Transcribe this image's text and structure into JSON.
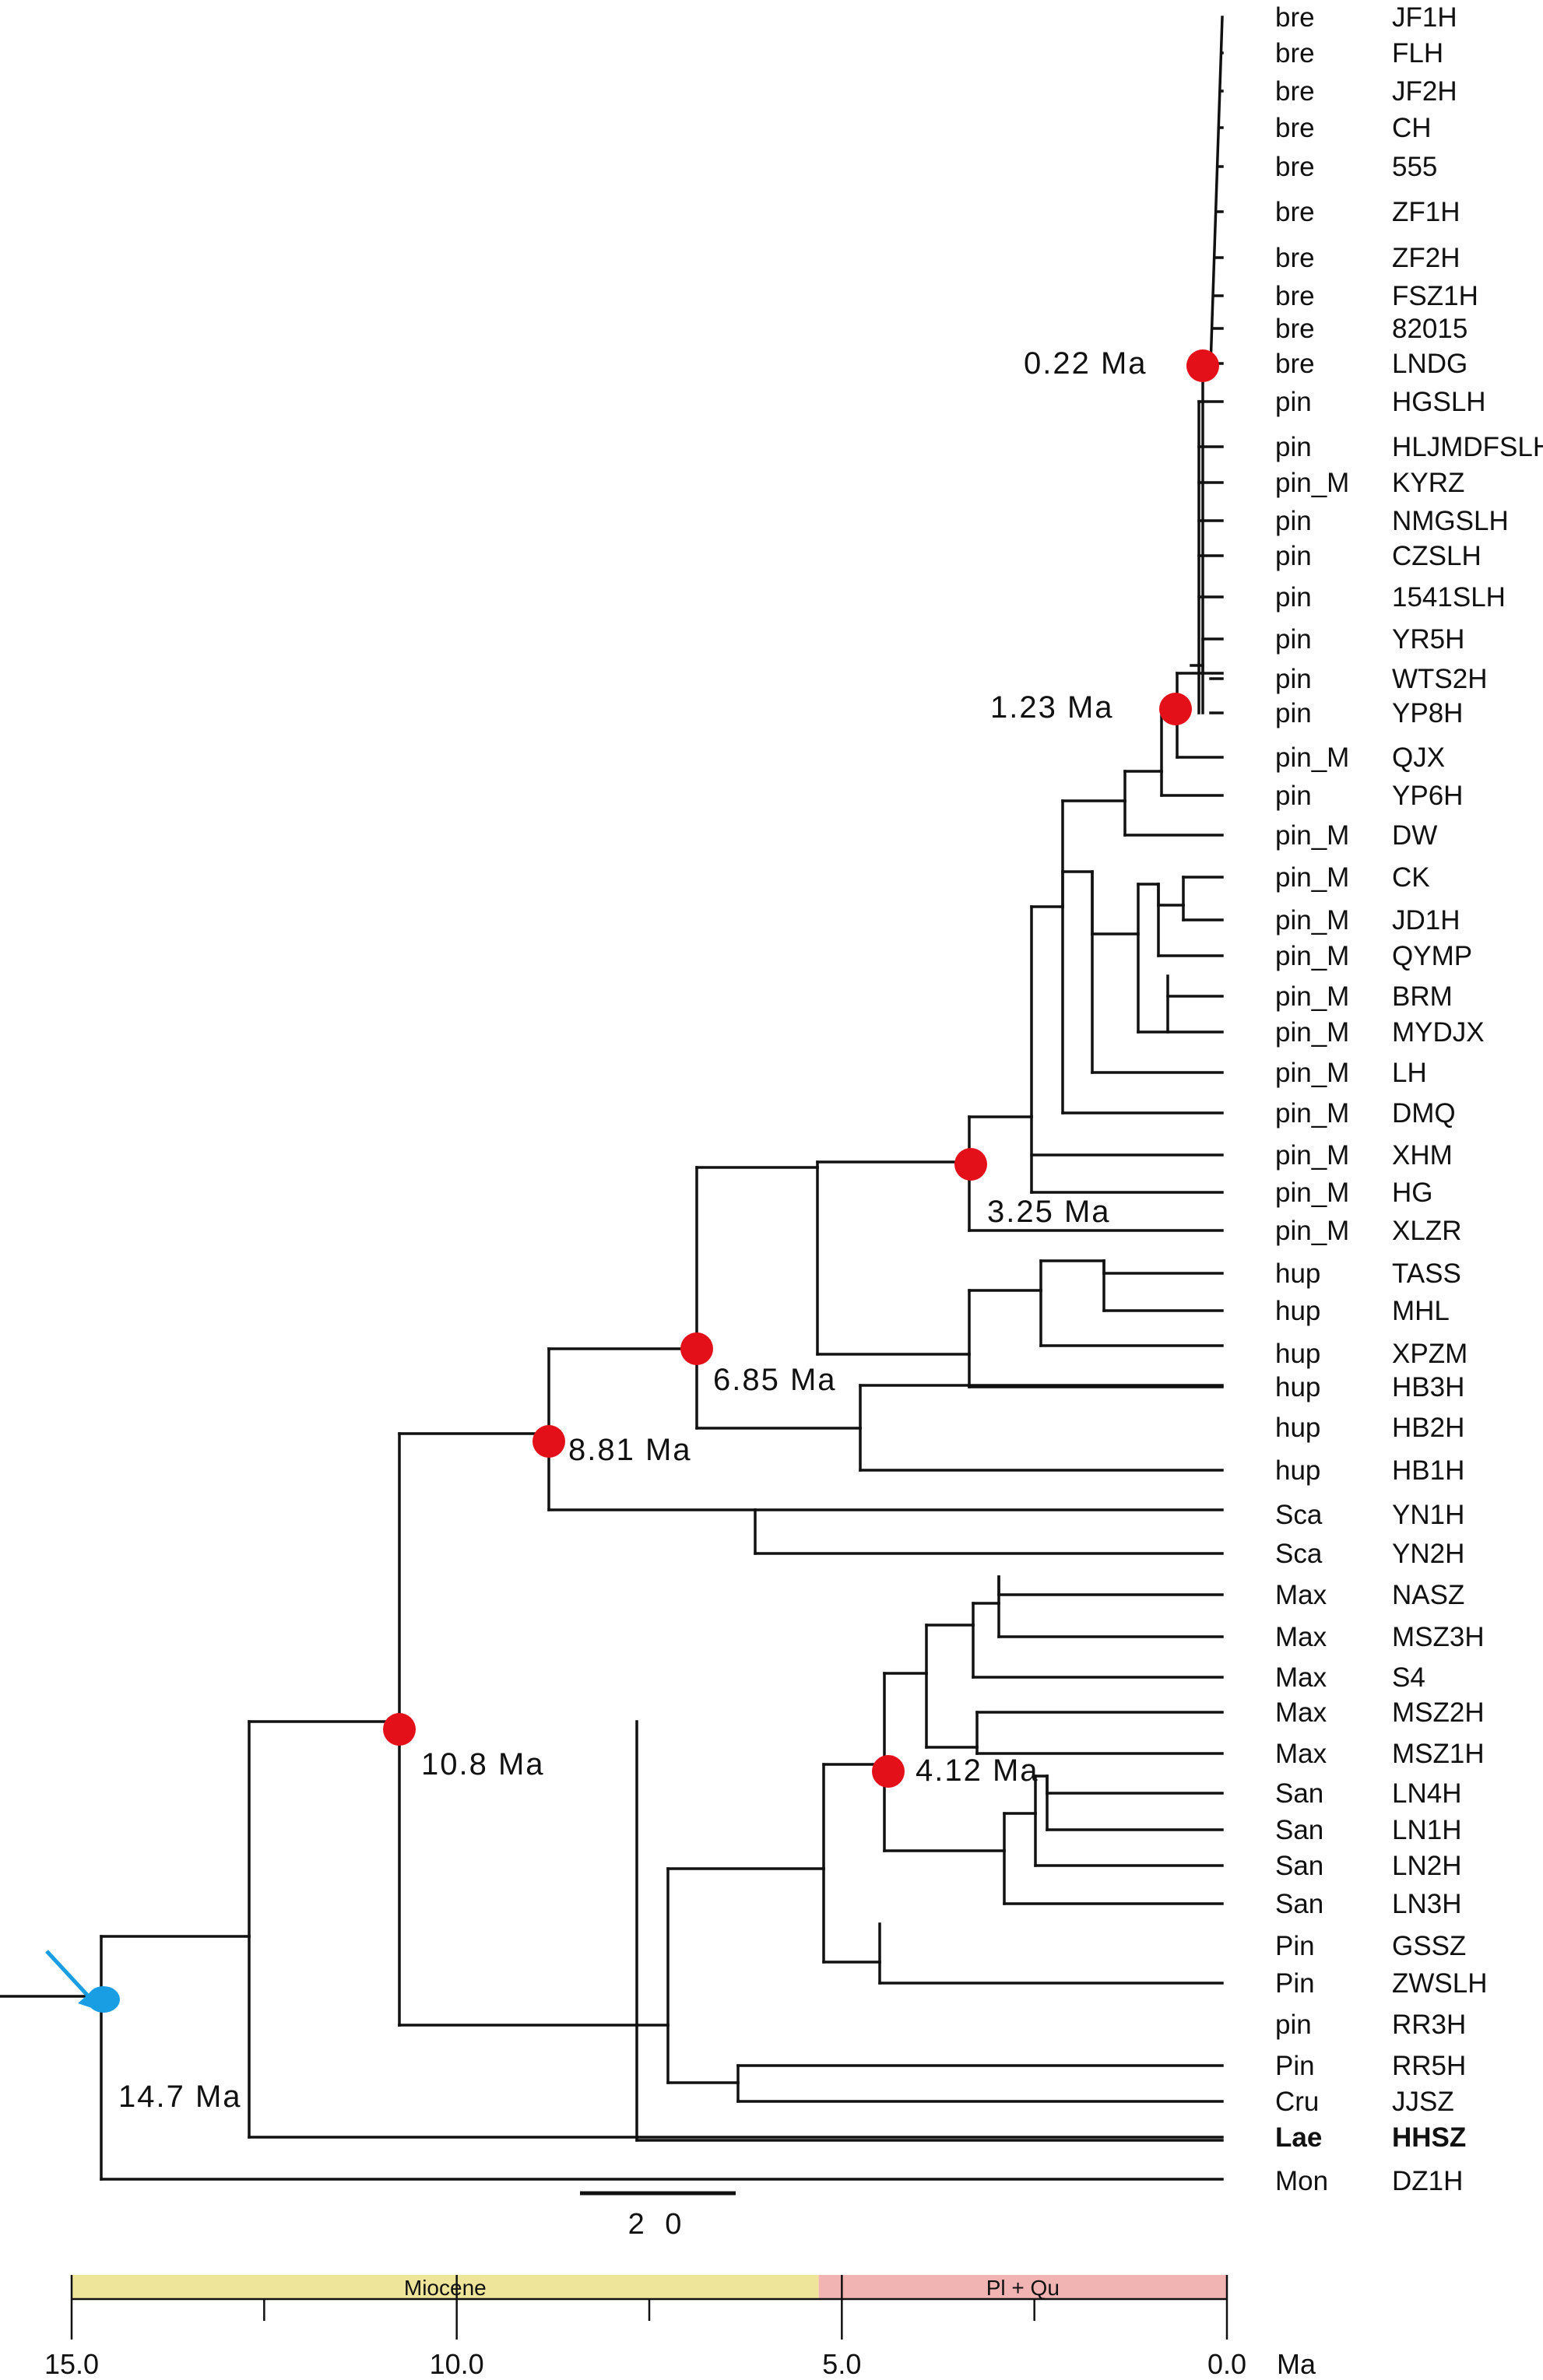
{
  "taxa": [
    {
      "group": "bre",
      "name": "JF1H"
    },
    {
      "group": "bre",
      "name": "FLH"
    },
    {
      "group": "bre",
      "name": "JF2H"
    },
    {
      "group": "bre",
      "name": "CH"
    },
    {
      "group": "bre",
      "name": "555"
    },
    {
      "group": "bre",
      "name": "ZF1H"
    },
    {
      "group": "bre",
      "name": "ZF2H"
    },
    {
      "group": "bre",
      "name": "FSZ1H"
    },
    {
      "group": "bre",
      "name": "82015"
    },
    {
      "group": "bre",
      "name": "LNDG"
    },
    {
      "group": "pin",
      "name": "HGSLH"
    },
    {
      "group": "pin",
      "name": "HLJMDFSLH"
    },
    {
      "group": "pin_M",
      "name": "KYRZ"
    },
    {
      "group": "pin",
      "name": "NMGSLH"
    },
    {
      "group": "pin",
      "name": "CZSLH"
    },
    {
      "group": "pin",
      "name": "1541SLH",
      "color": "#1a2fd0"
    },
    {
      "group": "pin",
      "name": "YR5H"
    },
    {
      "group": "pin",
      "name": "WTS2H"
    },
    {
      "group": "pin",
      "name": "YP8H"
    },
    {
      "group": "pin_M",
      "name": "QJX"
    },
    {
      "group": "pin",
      "name": "YP6H"
    },
    {
      "group": "pin_M",
      "name": "DW"
    },
    {
      "group": "pin_M",
      "name": "CK"
    },
    {
      "group": "pin_M",
      "name": "JD1H"
    },
    {
      "group": "pin_M",
      "name": "QYMP"
    },
    {
      "group": "pin_M",
      "name": "BRM"
    },
    {
      "group": "pin_M",
      "name": "MYDJX"
    },
    {
      "group": "pin_M",
      "name": "LH"
    },
    {
      "group": "pin_M",
      "name": "DMQ"
    },
    {
      "group": "pin_M",
      "name": "XHM"
    },
    {
      "group": "pin_M",
      "name": "HG"
    },
    {
      "group": "pin_M",
      "name": "XLZR"
    },
    {
      "group": "hup",
      "name": "TASS"
    },
    {
      "group": "hup",
      "name": "MHL"
    },
    {
      "group": "hup",
      "name": "XPZM"
    },
    {
      "group": "hup",
      "name": "HB3H"
    },
    {
      "group": "hup",
      "name": "HB2H"
    },
    {
      "group": "hup",
      "name": "HB1H"
    },
    {
      "group": "Sca",
      "name": "YN1H"
    },
    {
      "group": "Sca",
      "name": "YN2H"
    },
    {
      "group": "Max",
      "name": "NASZ"
    },
    {
      "group": "Max",
      "name": "MSZ3H"
    },
    {
      "group": "Max",
      "name": "S4"
    },
    {
      "group": "Max",
      "name": "MSZ2H"
    },
    {
      "group": "Max",
      "name": "MSZ1H"
    },
    {
      "group": "San",
      "name": "LN4H"
    },
    {
      "group": "San",
      "name": "LN1H"
    },
    {
      "group": "San",
      "name": "LN2H"
    },
    {
      "group": "San",
      "name": "LN3H"
    },
    {
      "group": "Pin",
      "name": "GSSZ"
    },
    {
      "group": "Pin",
      "name": "ZWSLH"
    },
    {
      "group": "pin",
      "name": "RR3H"
    },
    {
      "group": "Pin",
      "name": "RR5H"
    },
    {
      "group": "Cru",
      "name": "JJSZ"
    },
    {
      "group": "Lae",
      "name": "HHSZ",
      "bold": true
    },
    {
      "group": "Mon",
      "name": "DZ1H",
      "color": "#1a2fd0"
    }
  ],
  "nodes": [
    {
      "label": "0.22 Ma",
      "age": 0.22,
      "color": "#e3101a"
    },
    {
      "label": "1.23 Ma",
      "age": 1.23,
      "color": "#e3101a"
    },
    {
      "label": "3.25 Ma",
      "age": 3.25,
      "color": "#e3101a"
    },
    {
      "label": "6.85 Ma",
      "age": 6.85,
      "color": "#e3101a"
    },
    {
      "label": "8.81 Ma",
      "age": 8.81,
      "color": "#e3101a"
    },
    {
      "label": "10.8 Ma",
      "age": 10.8,
      "color": "#e3101a"
    },
    {
      "label": "4.12 Ma",
      "age": 4.12,
      "color": "#e3101a"
    },
    {
      "label": "14.7 Ma",
      "age": 14.7,
      "color": "#1a9ee3"
    }
  ],
  "scale_bar": {
    "label": "2 0"
  },
  "timescale": {
    "epochs": [
      {
        "name": "Miocene",
        "from": 15.0,
        "to": 5.3,
        "color": "#efe59a"
      },
      {
        "name": "Pl + Qu",
        "from": 5.3,
        "to": 0.0,
        "color": "#f2b3b3"
      }
    ],
    "ticks": [
      "15.0",
      "10.0",
      "5.0",
      "0.0"
    ],
    "unit": "Ma"
  },
  "colors": {
    "branch": "#111111",
    "root_arrow": "#1a9ee3"
  }
}
